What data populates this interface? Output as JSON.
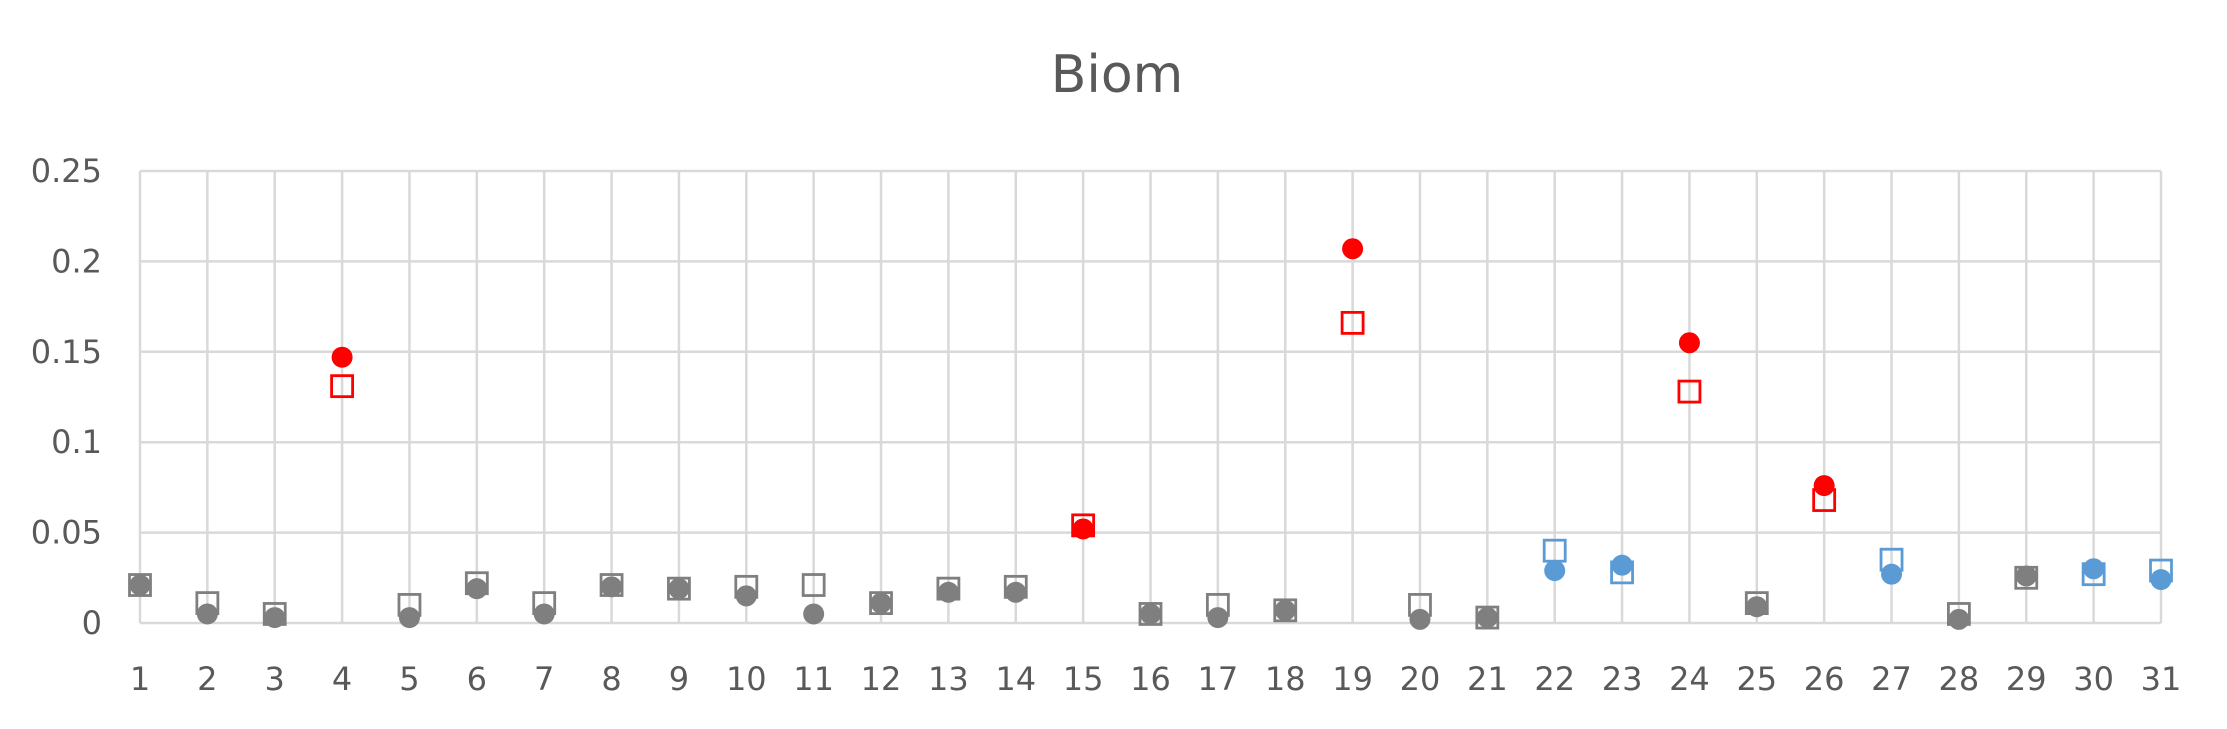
{
  "chart_data": {
    "type": "scatter",
    "title": "Biom",
    "xlabel": "",
    "ylabel": "",
    "xlim": [
      1,
      31
    ],
    "ylim": [
      0,
      0.25
    ],
    "x_ticks": [
      "1",
      "2",
      "3",
      "4",
      "5",
      "6",
      "7",
      "8",
      "9",
      "10",
      "11",
      "12",
      "13",
      "14",
      "15",
      "16",
      "17",
      "18",
      "19",
      "20",
      "21",
      "22",
      "23",
      "24",
      "25",
      "26",
      "27",
      "28",
      "29",
      "30",
      "31"
    ],
    "y_ticks": [
      "0",
      "0.05",
      "0.1",
      "0.15",
      "0.2",
      "0.25"
    ],
    "y_tick_values": [
      0,
      0.05,
      0.1,
      0.15,
      0.2,
      0.25
    ],
    "grid": true,
    "legend": "none",
    "colors": {
      "gray": "#7f7f7f",
      "red": "#ff0000",
      "blue": "#5b9bd5",
      "grid": "#d9d9d9",
      "text": "#595959"
    },
    "points": [
      {
        "x": 1,
        "circle": 0.021,
        "square": 0.021,
        "color": "gray"
      },
      {
        "x": 2,
        "circle": 0.005,
        "square": 0.011,
        "color": "gray"
      },
      {
        "x": 3,
        "circle": 0.003,
        "square": 0.005,
        "color": "gray"
      },
      {
        "x": 4,
        "circle": 0.147,
        "square": 0.131,
        "color": "red"
      },
      {
        "x": 5,
        "circle": 0.003,
        "square": 0.01,
        "color": "gray"
      },
      {
        "x": 6,
        "circle": 0.019,
        "square": 0.022,
        "color": "gray"
      },
      {
        "x": 7,
        "circle": 0.005,
        "square": 0.011,
        "color": "gray"
      },
      {
        "x": 8,
        "circle": 0.02,
        "square": 0.021,
        "color": "gray"
      },
      {
        "x": 9,
        "circle": 0.019,
        "square": 0.019,
        "color": "gray"
      },
      {
        "x": 10,
        "circle": 0.015,
        "square": 0.02,
        "color": "gray"
      },
      {
        "x": 11,
        "circle": 0.005,
        "square": 0.021,
        "color": "gray"
      },
      {
        "x": 12,
        "circle": 0.011,
        "square": 0.011,
        "color": "gray"
      },
      {
        "x": 13,
        "circle": 0.017,
        "square": 0.019,
        "color": "gray"
      },
      {
        "x": 14,
        "circle": 0.017,
        "square": 0.02,
        "color": "gray"
      },
      {
        "x": 15,
        "circle": 0.052,
        "square": 0.054,
        "color": "red"
      },
      {
        "x": 16,
        "circle": 0.005,
        "square": 0.005,
        "color": "gray"
      },
      {
        "x": 17,
        "circle": 0.003,
        "square": 0.01,
        "color": "gray"
      },
      {
        "x": 18,
        "circle": 0.007,
        "square": 0.007,
        "color": "gray"
      },
      {
        "x": 19,
        "circle": 0.207,
        "square": 0.166,
        "color": "red"
      },
      {
        "x": 20,
        "circle": 0.002,
        "square": 0.01,
        "color": "gray"
      },
      {
        "x": 21,
        "circle": 0.003,
        "square": 0.003,
        "color": "gray"
      },
      {
        "x": 22,
        "circle": 0.029,
        "square": 0.04,
        "color": "blue"
      },
      {
        "x": 23,
        "circle": 0.032,
        "square": 0.028,
        "color": "blue"
      },
      {
        "x": 24,
        "circle": 0.155,
        "square": 0.128,
        "color": "red"
      },
      {
        "x": 25,
        "circle": 0.009,
        "square": 0.011,
        "color": "gray"
      },
      {
        "x": 26,
        "circle": 0.076,
        "square": 0.068,
        "color": "red"
      },
      {
        "x": 27,
        "circle": 0.027,
        "square": 0.035,
        "color": "blue"
      },
      {
        "x": 28,
        "circle": 0.002,
        "square": 0.005,
        "color": "gray"
      },
      {
        "x": 29,
        "circle": 0.026,
        "square": 0.025,
        "color": "gray"
      },
      {
        "x": 30,
        "circle": 0.03,
        "square": 0.027,
        "color": "blue"
      },
      {
        "x": 31,
        "circle": 0.024,
        "square": 0.029,
        "color": "blue"
      }
    ]
  }
}
